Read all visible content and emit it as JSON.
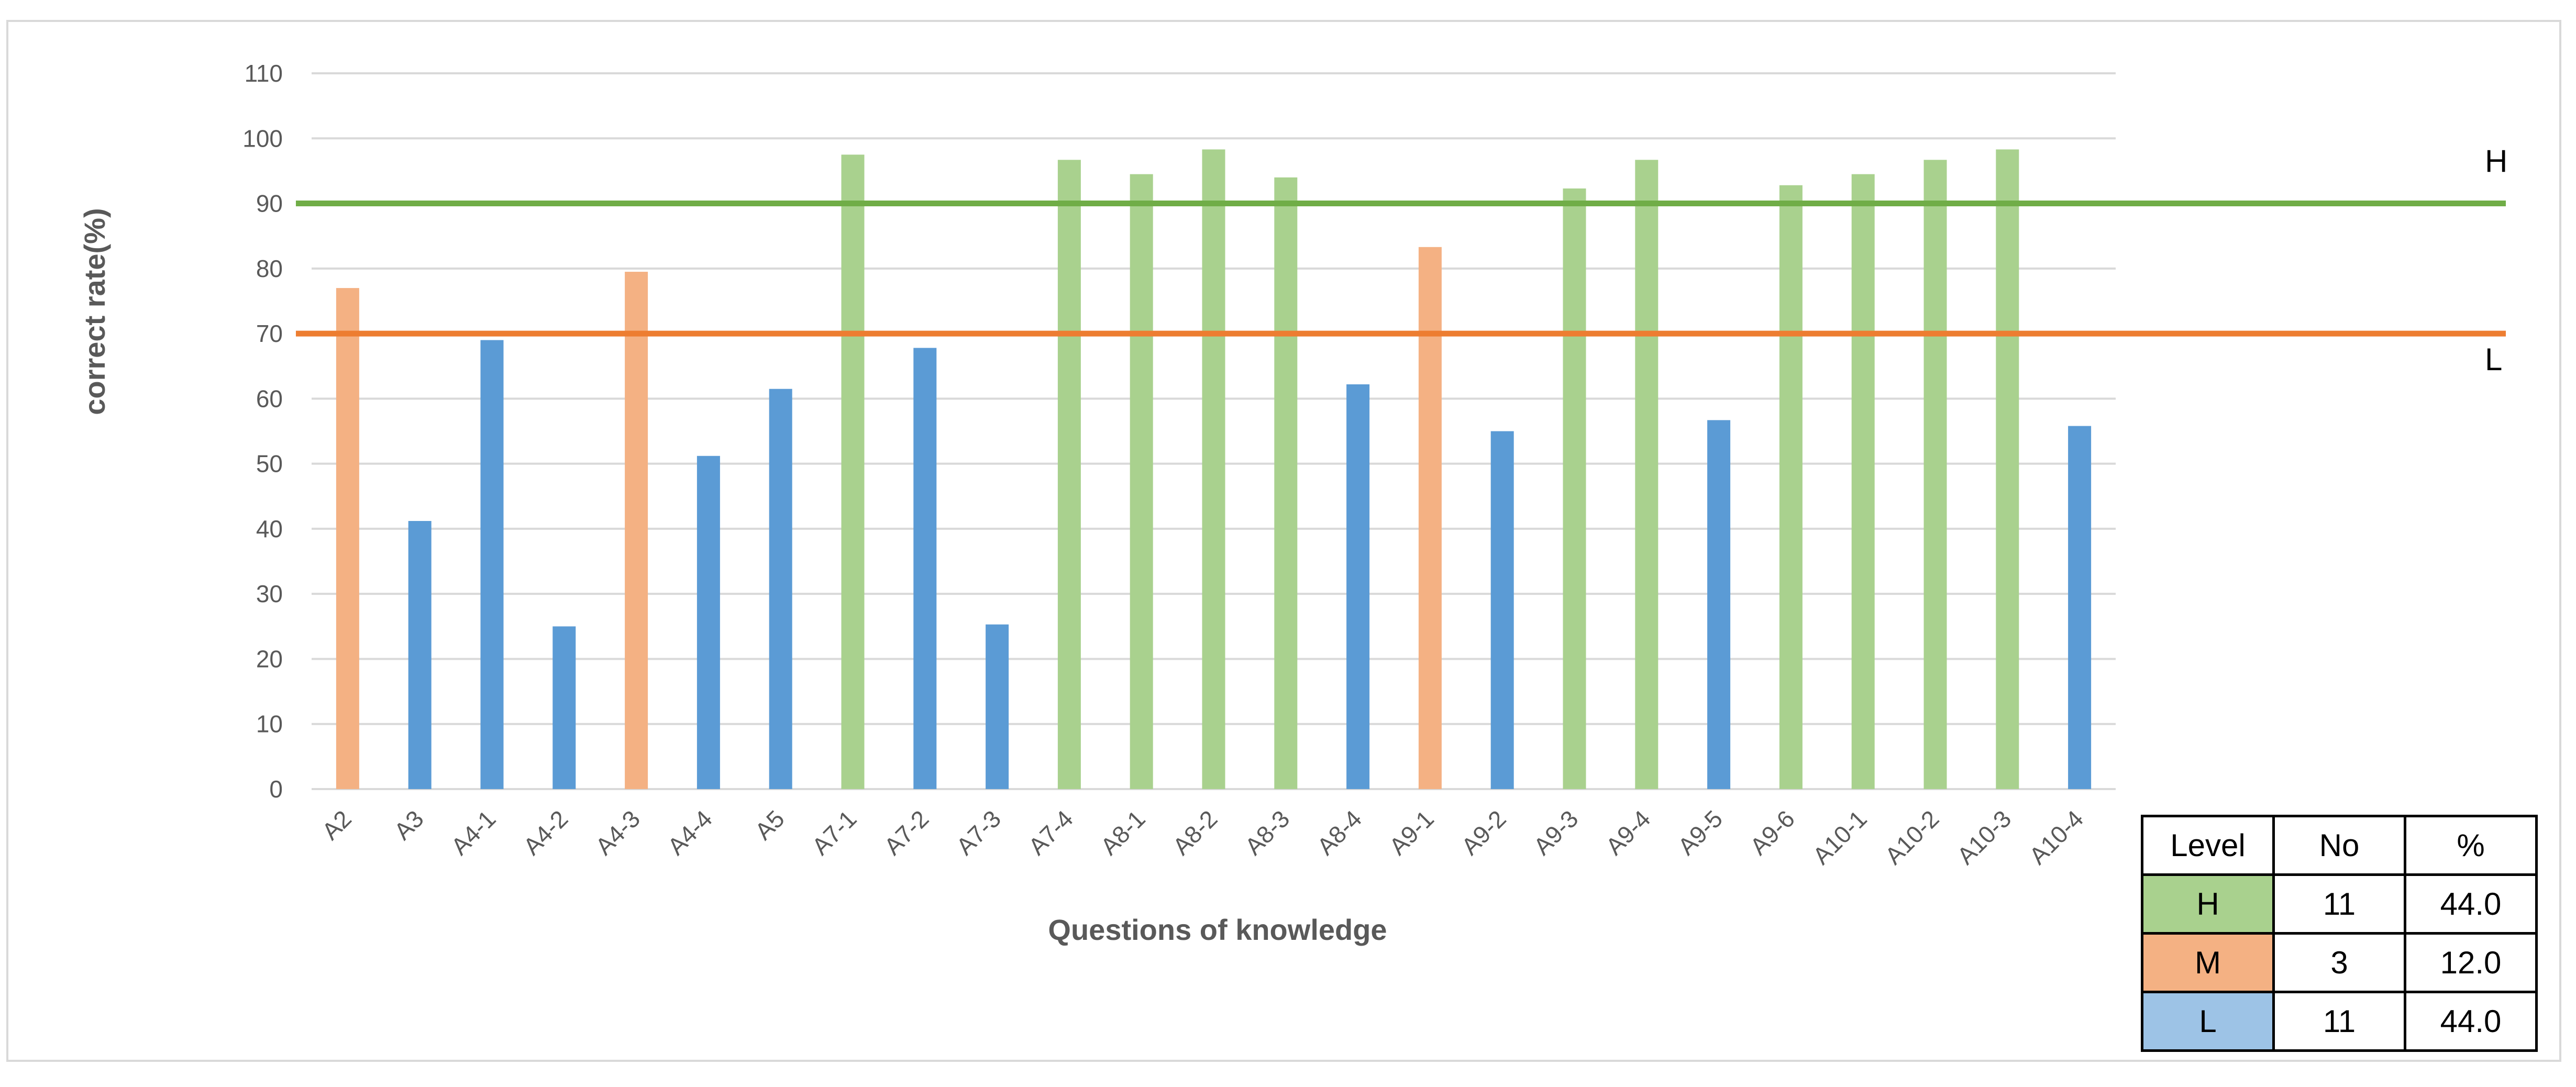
{
  "chart_data": {
    "type": "bar",
    "xlabel": "Questions of knowledge",
    "ylabel": "correct rate(%)",
    "ylim": [
      0,
      110
    ],
    "yticks": [
      0,
      10,
      20,
      30,
      40,
      50,
      60,
      70,
      80,
      90,
      100,
      110
    ],
    "grid": true,
    "categories": [
      "A2",
      "A3",
      "A4-1",
      "A4-2",
      "A4-3",
      "A4-4",
      "A5",
      "A7-1",
      "A7-2",
      "A7-3",
      "A7-4",
      "A8-1",
      "A8-2",
      "A8-3",
      "A8-4",
      "A9-1",
      "A9-2",
      "A9-3",
      "A9-4",
      "A9-5",
      "A9-6",
      "A10-1",
      "A10-2",
      "A10-3",
      "A10-4"
    ],
    "values": [
      77,
      41.2,
      69,
      25,
      79.5,
      51.2,
      61.5,
      97.5,
      67.8,
      25.3,
      96.7,
      94.5,
      98.3,
      94,
      62.2,
      83.3,
      55,
      92.3,
      96.7,
      56.7,
      92.8,
      94.5,
      96.7,
      98.3,
      55.8
    ],
    "levels": [
      "M",
      "L",
      "L",
      "L",
      "M",
      "L",
      "L",
      "H",
      "L",
      "L",
      "H",
      "H",
      "H",
      "H",
      "L",
      "M",
      "L",
      "H",
      "H",
      "L",
      "H",
      "H",
      "H",
      "H",
      "L"
    ],
    "reference_lines": [
      {
        "label": "H",
        "value": 90,
        "color": "#70ad47"
      },
      {
        "label": "L",
        "value": 70,
        "color": "#ed7d31"
      }
    ],
    "colors": {
      "H": "#a9d18e",
      "M": "#f4b183",
      "L": "#5b9bd5",
      "grid": "#d9d9d9"
    },
    "legend_table": {
      "headers": [
        "Level",
        "No",
        "%"
      ],
      "rows": [
        {
          "level": "H",
          "no": "11",
          "pct": "44.0",
          "color": "#a9d18e"
        },
        {
          "level": "M",
          "no": "3",
          "pct": "12.0",
          "color": "#f4b183"
        },
        {
          "level": "L",
          "no": "11",
          "pct": "44.0",
          "color": "#9dc3e6"
        }
      ]
    }
  }
}
